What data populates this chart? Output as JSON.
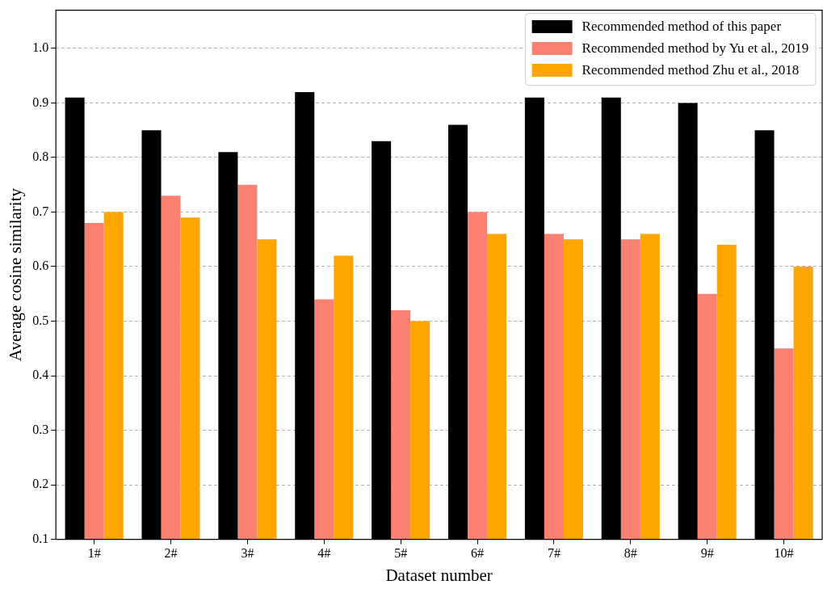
{
  "chart_data": {
    "type": "bar",
    "xlabel": "Dataset number",
    "ylabel": "Average cosine similarity",
    "categories": [
      "1#",
      "2#",
      "3#",
      "4#",
      "5#",
      "6#",
      "7#",
      "8#",
      "9#",
      "10#"
    ],
    "series": [
      {
        "name": "Recommended method of this paper",
        "color": "#000000",
        "values": [
          0.91,
          0.85,
          0.81,
          0.92,
          0.83,
          0.86,
          0.91,
          0.91,
          0.9,
          0.85
        ]
      },
      {
        "name": "Recommended method by Yu et al., 2019",
        "color": "#fa8072",
        "values": [
          0.68,
          0.73,
          0.75,
          0.54,
          0.52,
          0.7,
          0.66,
          0.65,
          0.55,
          0.45
        ]
      },
      {
        "name": "Recommended method Zhu et al., 2018",
        "color": "#ffa500",
        "values": [
          0.7,
          0.69,
          0.65,
          0.62,
          0.5,
          0.66,
          0.65,
          0.66,
          0.64,
          0.6
        ]
      }
    ],
    "ylim": [
      0.1,
      1.07
    ],
    "yticks": [
      0.1,
      0.2,
      0.3,
      0.4,
      0.5,
      0.6,
      0.7,
      0.8,
      0.9,
      {
        "value": 1,
        "label": "1.0"
      }
    ],
    "grid": "y",
    "legend": "top right"
  }
}
